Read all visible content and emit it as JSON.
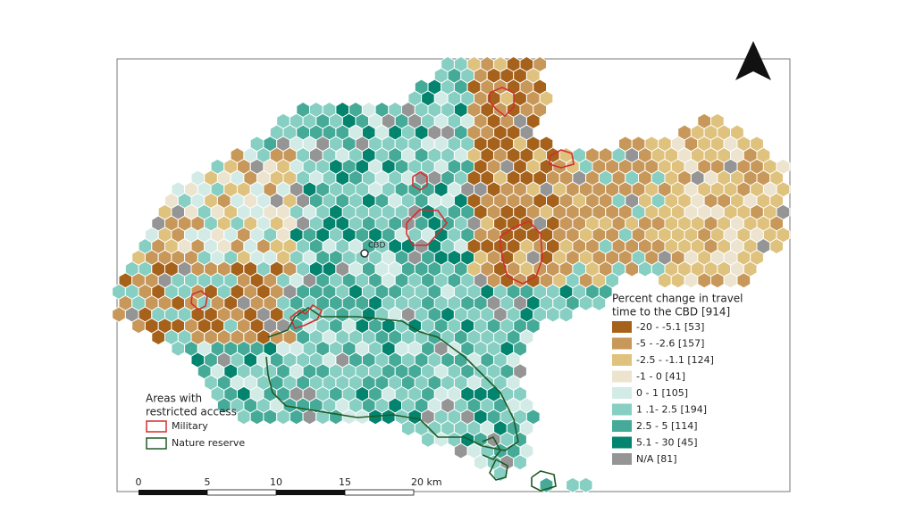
{
  "legend": {
    "title": [
      "Percent change in travel",
      "time to the CBD [914]"
    ],
    "items": [
      {
        "label": "-20 - -5.1 [53]",
        "color": "#a6611a"
      },
      {
        "label": "-5 - -2.6 [157]",
        "color": "#c8985a"
      },
      {
        "label": "-2.5 - -1.1 [124]",
        "color": "#dfc27d"
      },
      {
        "label": "-1 - 0 [41]",
        "color": "#ede4cf"
      },
      {
        "label": "0 - 1 [105]",
        "color": "#d3ebe6"
      },
      {
        "label": "1 .1- 2.5 [194]",
        "color": "#86cfc2"
      },
      {
        "label": "2.5 - 5 [114]",
        "color": "#45ab98"
      },
      {
        "label": "5.1 - 30 [45]",
        "color": "#02846f"
      },
      {
        "label": "N/A [81]",
        "color": "#959595"
      }
    ]
  },
  "restricted": {
    "title": [
      "Areas with",
      "restricted access"
    ],
    "items": [
      {
        "label": "Military",
        "color": "#d32f2f"
      },
      {
        "label": "Nature reserve",
        "color": "#1f5a26"
      }
    ]
  },
  "scale": {
    "labels": [
      "0",
      "5",
      "10",
      "15",
      "20 km"
    ]
  },
  "cbd_label": "CBD"
}
